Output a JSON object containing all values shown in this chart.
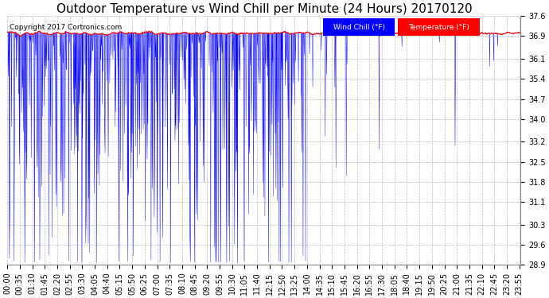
{
  "title": "Outdoor Temperature vs Wind Chill per Minute (24 Hours) 20170120",
  "copyright": "Copyright 2017 Cortronics.com",
  "y_min": 28.9,
  "y_max": 37.6,
  "y_ticks": [
    28.9,
    29.6,
    30.3,
    31.1,
    31.8,
    32.5,
    33.2,
    34.0,
    34.7,
    35.4,
    36.1,
    36.9,
    37.6
  ],
  "temp_color": "#FF0000",
  "wind_chill_color": "#0000FF",
  "background_color": "#FFFFFF",
  "grid_color": "#AAAAAA",
  "legend_wind_bg": "#0000FF",
  "legend_temp_bg": "#FF0000",
  "legend_text_color": "#FFFFFF",
  "title_fontsize": 11,
  "copyright_fontsize": 6.5,
  "tick_fontsize": 7,
  "n_minutes": 1440,
  "x_tick_step": 35
}
